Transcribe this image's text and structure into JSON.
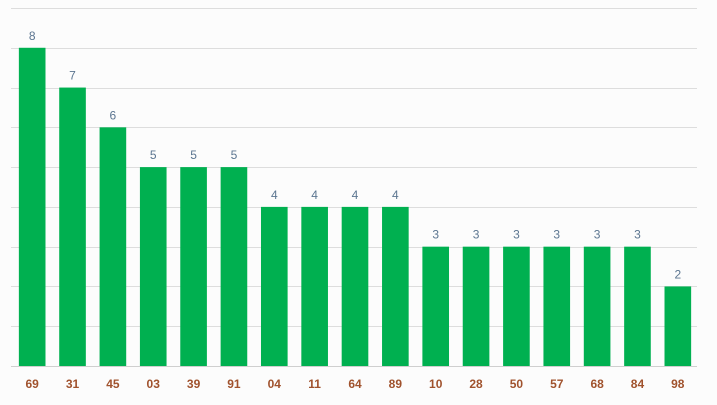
{
  "chart_data": {
    "type": "bar",
    "categories": [
      "69",
      "31",
      "45",
      "03",
      "39",
      "91",
      "04",
      "11",
      "64",
      "89",
      "10",
      "28",
      "50",
      "57",
      "68",
      "84",
      "98"
    ],
    "values": [
      8,
      7,
      6,
      5,
      5,
      5,
      4,
      4,
      4,
      4,
      3,
      3,
      3,
      3,
      3,
      3,
      2
    ],
    "title": "",
    "xlabel": "",
    "ylabel": "",
    "ylim": [
      0,
      9
    ],
    "grid": true,
    "legend": "none",
    "colors": {
      "bar": "#00b050",
      "value_label": "#5b7590",
      "tick_label": "#a0522d",
      "grid": "#dddddd"
    }
  }
}
